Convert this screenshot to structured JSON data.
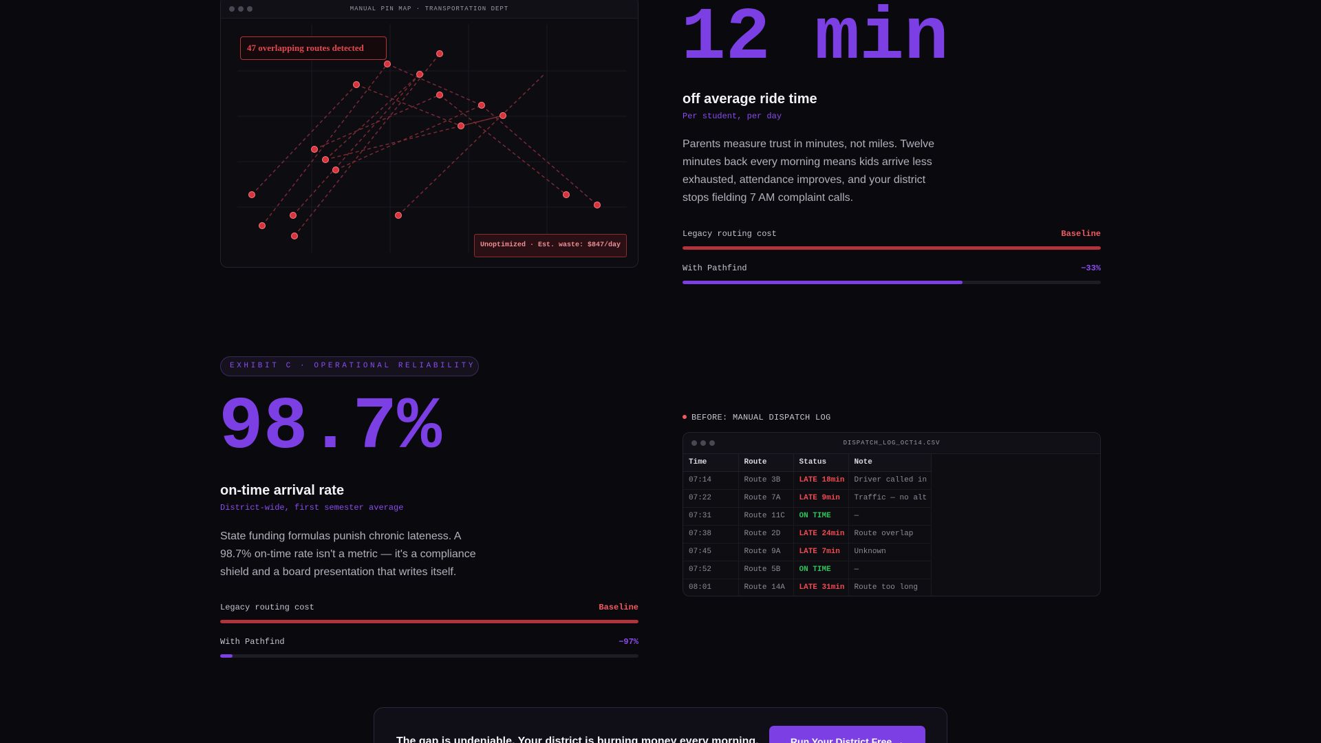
{
  "map_window": {
    "title": "MANUAL PIN MAP · TRANSPORTATION DEPT",
    "overlap_badge": "47 overlapping routes detected",
    "waste_badge": "Unoptimized · Est. waste: $847/day"
  },
  "ride_time": {
    "value": "12 min",
    "title": "off average ride time",
    "subtitle": "Per student, per day",
    "body": "Parents measure trust in minutes, not miles. Twelve minutes back every morning means kids arrive less exhausted, attendance improves, and your district stops fielding 7 AM complaint calls.",
    "legacy_label": "Legacy routing cost",
    "legacy_value": "Baseline",
    "legacy_fill": 1.0,
    "pathfind_label": "With Pathfind",
    "pathfind_value": "−33%",
    "pathfind_fill": 0.67
  },
  "exhibit_c": {
    "pill": "EXHIBIT C · OPERATIONAL RELIABILITY",
    "value": "98.7%",
    "title": "on-time arrival rate",
    "subtitle": "District-wide, first semester average",
    "body": "State funding formulas punish chronic lateness. A 98.7% on-time rate isn't a metric — it's a compliance shield and a board presentation that writes itself.",
    "legacy_label": "Legacy routing cost",
    "legacy_value": "Baseline",
    "legacy_fill": 1.0,
    "pathfind_label": "With Pathfind",
    "pathfind_value": "−97%",
    "pathfind_fill": 0.03
  },
  "dispatch_log": {
    "label": "BEFORE: MANUAL DISPATCH LOG",
    "window_title": "DISPATCH_LOG_OCT14.CSV",
    "headers": [
      "Time",
      "Route",
      "Status",
      "Note"
    ],
    "rows": [
      {
        "time": "07:14",
        "route": "Route 3B",
        "status": "LATE 18min",
        "state": "late",
        "note": "Driver called in"
      },
      {
        "time": "07:22",
        "route": "Route 7A",
        "status": "LATE 9min",
        "state": "late",
        "note": "Traffic — no alt"
      },
      {
        "time": "07:31",
        "route": "Route 11C",
        "status": "ON TIME",
        "state": "ontime",
        "note": "—"
      },
      {
        "time": "07:38",
        "route": "Route 2D",
        "status": "LATE 24min",
        "state": "late",
        "note": "Route overlap"
      },
      {
        "time": "07:45",
        "route": "Route 9A",
        "status": "LATE 7min",
        "state": "late",
        "note": "Unknown"
      },
      {
        "time": "07:52",
        "route": "Route 5B",
        "status": "ON TIME",
        "state": "ontime",
        "note": "—"
      },
      {
        "time": "08:01",
        "route": "Route 14A",
        "status": "LATE 31min",
        "state": "late",
        "note": "Route too long"
      }
    ]
  },
  "cta": {
    "text": "The gap is undeniable. Your district is burning money every morning.",
    "button": "Run Your District Free →"
  },
  "colors": {
    "accent": "#7b3fe4",
    "danger": "#ef5a5f",
    "success": "#31c25a",
    "background": "#0a090d"
  }
}
